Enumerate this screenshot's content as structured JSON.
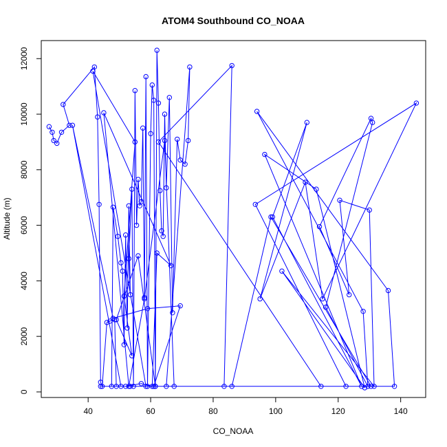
{
  "chart_data": {
    "type": "line",
    "title": "ATOM4 Southbound CO_NOAA",
    "xlabel": "CO_NOAA",
    "ylabel": "Altitude (m)",
    "xlim": [
      25,
      148
    ],
    "ylim": [
      -200,
      12650
    ],
    "xticks": [
      40,
      60,
      80,
      100,
      120,
      140
    ],
    "yticks": [
      0,
      2000,
      4000,
      6000,
      8000,
      10000,
      12000
    ],
    "grid": false,
    "legend": "none",
    "series_color": "#0000ff",
    "series": [
      {
        "x": [
          27.5,
          28.5,
          29.0,
          30.0,
          31.5,
          34.0,
          32.0,
          42.0,
          43.0,
          43.5,
          44.0,
          44.5,
          46.0,
          47.0,
          48.5,
          49.0,
          47.5,
          48.0,
          49.5,
          50.5,
          51.0,
          51.5,
          52.0,
          52.5,
          53.0,
          53.5,
          53.0,
          54.0,
          54.5,
          55.0,
          55.5,
          56.0,
          56.5,
          57.0,
          57.5,
          58.0,
          58.5,
          59.0,
          60.0,
          60.5,
          61.0,
          61.5,
          62.0,
          62.5,
          63.0,
          63.5,
          64.0,
          64.5,
          65.0,
          66.0,
          67.0,
          68.5,
          69.5,
          71.0,
          72.0,
          72.5,
          65.0,
          83.5,
          86.0,
          62.5,
          114.5,
          122.5,
          93.5,
          145.0,
          115.0,
          109.5,
          95.0,
          110.0,
          99.0,
          127.5,
          96.5,
          113.0,
          128.5,
          102.0,
          131.5,
          130.0,
          120.5,
          123.5,
          114.0,
          130.5,
          131.0,
          116.0,
          129.5,
          128.0,
          94.0,
          136.0,
          138.0,
          86.0,
          98.5,
          130.5,
          44.0,
          53.5,
          61.0,
          69.5,
          59.0,
          48.0,
          35.0,
          50.5,
          52.0,
          57.0,
          60.5,
          62.0,
          66.5,
          45.0,
          53.0,
          58.0,
          64.5,
          67.5,
          61.5,
          56.0,
          49.0,
          54.0,
          51.5,
          55.0,
          41.5,
          58.5
        ],
        "y": [
          9550,
          9350,
          9050,
          8950,
          9350,
          9600,
          10350,
          11700,
          9900,
          6750,
          350,
          200,
          2500,
          2550,
          2600,
          200,
          200,
          6650,
          5600,
          4650,
          4350,
          1700,
          5650,
          2300,
          6700,
          3500,
          4800,
          7300,
          200,
          10850,
          6000,
          7650,
          6700,
          6850,
          9500,
          3400,
          11350,
          200,
          9300,
          11050,
          10500,
          200,
          12300,
          10400,
          7250,
          5800,
          5600,
          10000,
          7350,
          10600,
          2850,
          9100,
          8350,
          8200,
          9050,
          11700,
          200,
          200,
          11750,
          9000,
          200,
          200,
          6750,
          10400,
          3350,
          7550,
          3350,
          9700,
          6300,
          200,
          8550,
          7300,
          150,
          4350,
          200,
          6550,
          6900,
          3500,
          5950,
          9850,
          9700,
          3050,
          200,
          2900,
          10100,
          3650,
          200,
          200,
          6300,
          200,
          200,
          200,
          200,
          3100,
          3000,
          2650,
          9600,
          200,
          200,
          300,
          200,
          5000,
          4550,
          10050,
          200,
          3350,
          9050,
          200,
          200,
          4900,
          2600,
          1300,
          3450,
          9000,
          11550,
          200
        ]
      }
    ]
  }
}
